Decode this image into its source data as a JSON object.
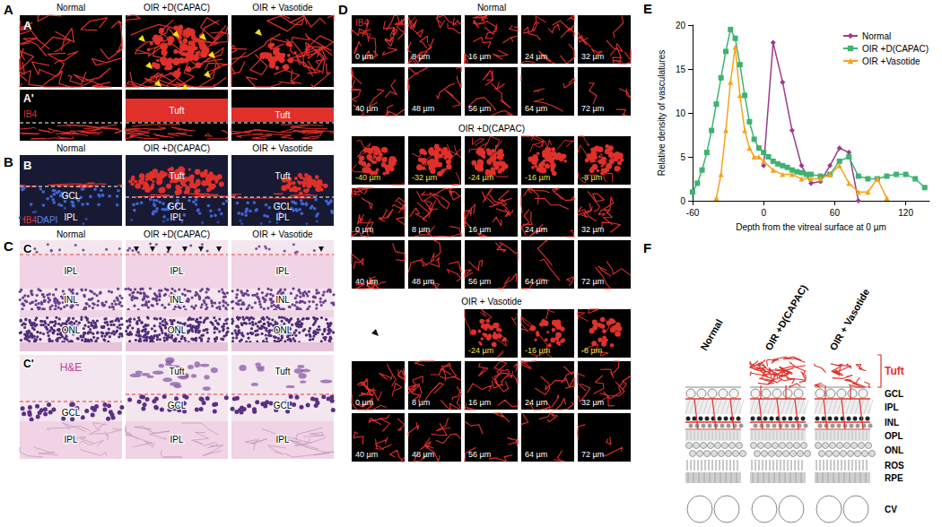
{
  "figure": {
    "panel_A": {
      "letter": "A",
      "columns": [
        "Normal",
        "OIR +D(CAPAC)",
        "OIR + Vasotide"
      ],
      "image_labels": [
        "A",
        "A'"
      ],
      "tuft": "Tuft",
      "stain": "IB4"
    },
    "panel_B": {
      "letter": "B",
      "image_label": "B",
      "stain": [
        "IB4",
        "DAPI"
      ],
      "columns": [
        {
          "title": "Normal",
          "labels": [
            "GCL",
            "IPL"
          ]
        },
        {
          "title": "OIR +D(CAPAC)",
          "labels": [
            "Tuft",
            "GCL",
            "IPL"
          ]
        },
        {
          "title": "OIR + Vasotide",
          "labels": [
            "Tuft",
            "GCL",
            "IPL"
          ]
        }
      ]
    },
    "panel_C": {
      "letter": "C",
      "image_labels": [
        "C",
        "C'"
      ],
      "stain": "H&E",
      "columns": [
        {
          "title": "Normal",
          "labels": [
            "IPL",
            "INL",
            "ONL"
          ],
          "zoom_labels": [
            "GCL",
            "IPL"
          ]
        },
        {
          "title": "OIR +D(CAPAC)",
          "labels": [
            "IPL",
            "INL",
            "ONL"
          ],
          "zoom_labels": [
            "Tuft",
            "GCL",
            "IPL"
          ]
        },
        {
          "title": "OIR + Vasotide",
          "labels": [
            "IPL",
            "INL",
            "ONL"
          ],
          "zoom_labels": [
            "Tuft",
            "GCL",
            "IPL"
          ]
        }
      ]
    },
    "panel_D": {
      "letter": "D",
      "stain": "IB4",
      "groups": [
        {
          "title": "Normal",
          "rows": [
            [
              "0 µm",
              "8 µm",
              "16 µm",
              "24 µm",
              "32 µm"
            ],
            [
              "40 µm",
              "48 µm",
              "56 µm",
              "64 µm",
              "72 µm"
            ]
          ]
        },
        {
          "title": "OIR +D(CAPAC)",
          "rows": [
            [
              "-40 µm",
              "-32 µm",
              "-24 µm",
              "-16 µm",
              "-8 µm"
            ],
            [
              "0 µm",
              "8 µm",
              "16 µm",
              "24 µm",
              "32 µm"
            ],
            [
              "40 µm",
              "48 µm",
              "56 µm",
              "64 µm",
              "72 µm"
            ]
          ]
        },
        {
          "title": "OIR + Vasotide",
          "rows": [
            [
              null,
              null,
              "-24 µm",
              "-16 µm",
              "-8 µm"
            ],
            [
              "0 µm",
              "8 µm",
              "16 µm",
              "24 µm",
              "32 µm"
            ],
            [
              "40 µm",
              "48 µm",
              "56 µm",
              "64 µm",
              "72 µm"
            ]
          ]
        }
      ]
    },
    "panel_E": {
      "letter": "E"
    },
    "panel_F": {
      "letter": "F",
      "columns": [
        "Normal",
        "OIR +D(CAPAC)",
        "OIR + Vasotide"
      ],
      "layers": [
        "Tuft",
        "GCL",
        "IPL",
        "INL",
        "OPL",
        "ONL",
        "ROS",
        "RPE",
        "CV"
      ]
    }
  },
  "chart_data": {
    "type": "line",
    "xlabel": "Depth from the vitreal surface at 0 µm",
    "ylabel": "Relative density of vasculatures",
    "xlim": [
      -60,
      140
    ],
    "xticks": [
      -60,
      0,
      60,
      120
    ],
    "ylim": [
      0,
      20
    ],
    "yticks": [
      0,
      5,
      10,
      15,
      20
    ],
    "grid": false,
    "legend": "upper right",
    "series": [
      {
        "name": "Normal",
        "color": "#9b3a8e",
        "marker": "diamond",
        "x": [
          0,
          8,
          16,
          24,
          32,
          40,
          48,
          56,
          64,
          72,
          80
        ],
        "values": [
          4,
          18,
          13.5,
          8,
          4,
          2,
          2.2,
          4,
          6,
          5.5,
          0
        ]
      },
      {
        "name": "OIR +D(CAPAC)",
        "color": "#3cb371",
        "marker": "rect",
        "x": [
          -60,
          -56,
          -52,
          -48,
          -44,
          -40,
          -36,
          -32,
          -28,
          -24,
          -20,
          -16,
          -12,
          -8,
          -4,
          0,
          4,
          8,
          12,
          16,
          20,
          24,
          28,
          32,
          36,
          40,
          48,
          56,
          64,
          72,
          80,
          88,
          96,
          104,
          112,
          120,
          128,
          136
        ],
        "values": [
          1,
          2,
          3.5,
          5.5,
          8,
          11,
          14,
          17,
          19.5,
          18.5,
          15.5,
          12,
          9,
          7,
          6,
          5.5,
          5,
          4.5,
          4.2,
          4,
          3.8,
          3.5,
          3.3,
          3.2,
          3,
          3,
          2.8,
          3,
          4.5,
          5,
          2.8,
          2.5,
          2.5,
          2.8,
          3,
          3,
          2.5,
          1.5
        ]
      },
      {
        "name": "OIR +Vasotide",
        "color": "#f5a31a",
        "marker": "triangle",
        "x": [
          -40,
          -36,
          -32,
          -28,
          -24,
          -20,
          -16,
          -12,
          -8,
          -4,
          0,
          8,
          16,
          24,
          32,
          40,
          48,
          56,
          64,
          72,
          80,
          88,
          96,
          104
        ],
        "values": [
          0.3,
          3,
          8,
          13.5,
          17.5,
          12,
          8,
          6,
          5,
          5,
          4.5,
          3.5,
          3,
          3,
          2.5,
          2.5,
          2.5,
          3,
          4,
          2,
          1,
          1,
          2.5,
          0.3
        ]
      }
    ]
  }
}
